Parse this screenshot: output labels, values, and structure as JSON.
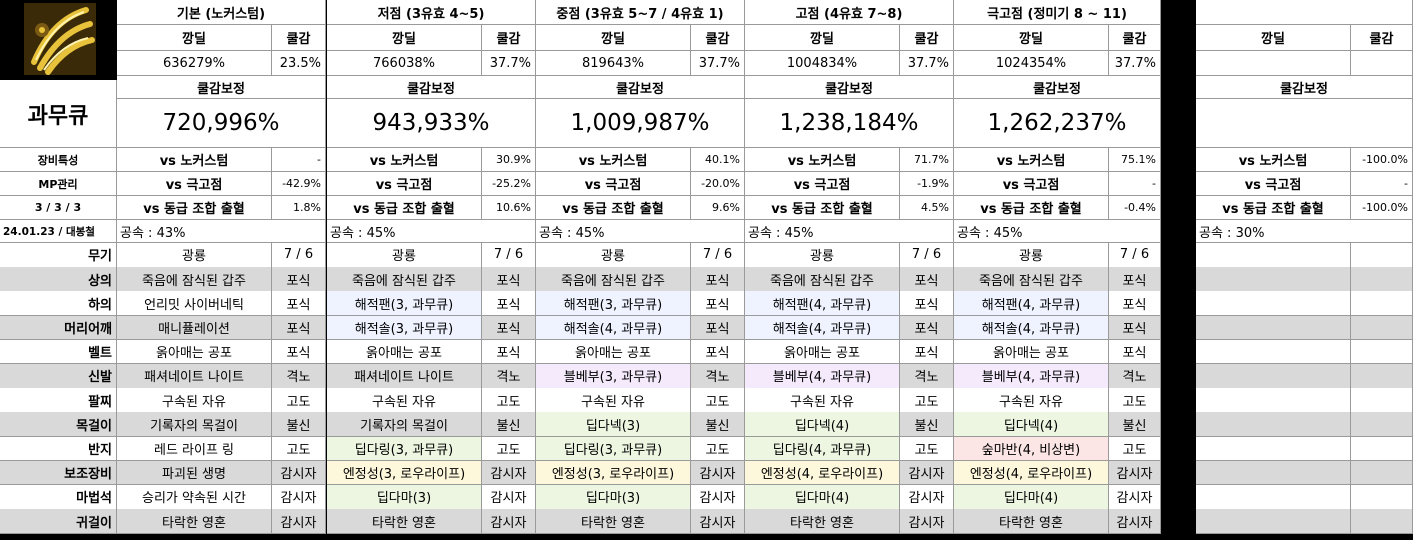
{
  "character": "과무큐",
  "icon": "claw-weapon-icon",
  "date_label": "24.01.23 / 대봉철",
  "labels": {
    "dmg": "깡딜",
    "cd": "쿨감",
    "corrected": "쿨감보정"
  },
  "side_labels": [
    "장비특성",
    "MP관리",
    "3 / 3 / 3"
  ],
  "compare_labels": [
    "vs 노커스텀",
    "vs 극고점",
    "vs 동급 조합 출혈"
  ],
  "slots": [
    "무기",
    "상의",
    "하의",
    "머리어깨",
    "벨트",
    "신발",
    "팔찌",
    "목걸이",
    "반지",
    "보조장비",
    "마법석",
    "귀걸이"
  ],
  "columns": [
    {
      "header": "기본 (노커스텀)",
      "dmg": "636279%",
      "cd": "23.5%",
      "corrected": "720,996%",
      "compare": [
        "-",
        "-42.9%",
        "1.8%"
      ],
      "speed": "공속 : 43%",
      "items": [
        [
          "광룡",
          "7 / 6"
        ],
        [
          "죽음에 잠식된 갑주",
          "포식"
        ],
        [
          "언리밋 사이버네틱",
          "포식"
        ],
        [
          "매니퓰레이션",
          "포식"
        ],
        [
          "옭아매는 공포",
          "포식"
        ],
        [
          "패셔네이트 나이트",
          "격노"
        ],
        [
          "구속된 자유",
          "고도"
        ],
        [
          "기록자의 목걸이",
          "불신"
        ],
        [
          "레드 라이프 링",
          "고도"
        ],
        [
          "파괴된 생명",
          "감시자"
        ],
        [
          "승리가 약속된 시간",
          "감시자"
        ],
        [
          "타락한 영혼",
          "감시자"
        ]
      ]
    },
    {
      "header": "저점 (3유효 4~5)",
      "dmg": "766038%",
      "cd": "37.7%",
      "corrected": "943,933%",
      "compare": [
        "30.9%",
        "-25.2%",
        "10.6%"
      ],
      "speed": "공속 : 45%",
      "items": [
        [
          "광룡",
          "7 / 6"
        ],
        [
          "죽음에 잠식된 갑주",
          "포식"
        ],
        [
          "해적팬(3, 과무큐)",
          "포식"
        ],
        [
          "해적솔(3, 과무큐)",
          "포식"
        ],
        [
          "옭아매는 공포",
          "포식"
        ],
        [
          "패셔네이트 나이트",
          "격노"
        ],
        [
          "구속된 자유",
          "고도"
        ],
        [
          "기록자의 목걸이",
          "불신"
        ],
        [
          "딥다링(3, 과무큐)",
          "고도"
        ],
        [
          "엔정성(3, 로우라이프)",
          "감시자"
        ],
        [
          "딥다마(3)",
          "감시자"
        ],
        [
          "타락한 영혼",
          "감시자"
        ]
      ]
    },
    {
      "header": "중점 (3유효 5~7 / 4유효 1)",
      "dmg": "819643%",
      "cd": "37.7%",
      "corrected": "1,009,987%",
      "compare": [
        "40.1%",
        "-20.0%",
        "9.6%"
      ],
      "speed": "공속 : 45%",
      "items": [
        [
          "광룡",
          "7 / 6"
        ],
        [
          "죽음에 잠식된 갑주",
          "포식"
        ],
        [
          "해적팬(3, 과무큐)",
          "포식"
        ],
        [
          "해적솔(4, 과무큐)",
          "포식"
        ],
        [
          "옭아매는 공포",
          "포식"
        ],
        [
          "블베부(3, 과무큐)",
          "격노"
        ],
        [
          "구속된 자유",
          "고도"
        ],
        [
          "딥다넥(3)",
          "불신"
        ],
        [
          "딥다링(3, 과무큐)",
          "고도"
        ],
        [
          "엔정성(3, 로우라이프)",
          "감시자"
        ],
        [
          "딥다마(3)",
          "감시자"
        ],
        [
          "타락한 영혼",
          "감시자"
        ]
      ]
    },
    {
      "header": "고점 (4유효 7~8)",
      "dmg": "1004834%",
      "cd": "37.7%",
      "corrected": "1,238,184%",
      "compare": [
        "71.7%",
        "-1.9%",
        "4.5%"
      ],
      "speed": "공속 : 45%",
      "items": [
        [
          "광룡",
          "7 / 6"
        ],
        [
          "죽음에 잠식된 갑주",
          "포식"
        ],
        [
          "해적팬(4, 과무큐)",
          "포식"
        ],
        [
          "해적솔(4, 과무큐)",
          "포식"
        ],
        [
          "옭아매는 공포",
          "포식"
        ],
        [
          "블베부(4, 과무큐)",
          "격노"
        ],
        [
          "구속된 자유",
          "고도"
        ],
        [
          "딥다넥(4)",
          "불신"
        ],
        [
          "딥다링(4, 과무큐)",
          "고도"
        ],
        [
          "엔정성(4, 로우라이프)",
          "감시자"
        ],
        [
          "딥다마(4)",
          "감시자"
        ],
        [
          "타락한 영혼",
          "감시자"
        ]
      ]
    },
    {
      "header": "극고점 (정미기 8 ~ 11)",
      "dmg": "1024354%",
      "cd": "37.7%",
      "corrected": "1,262,237%",
      "compare": [
        "75.1%",
        "-",
        "-0.4%"
      ],
      "speed": "공속 : 45%",
      "items": [
        [
          "광룡",
          "7 / 6"
        ],
        [
          "죽음에 잠식된 갑주",
          "포식"
        ],
        [
          "해적팬(4, 과무큐)",
          "포식"
        ],
        [
          "해적솔(4, 과무큐)",
          "포식"
        ],
        [
          "옭아매는 공포",
          "포식"
        ],
        [
          "블베부(4, 과무큐)",
          "격노"
        ],
        [
          "구속된 자유",
          "고도"
        ],
        [
          "딥다넥(4)",
          "불신"
        ],
        [
          "숲마반(4, 비상변)",
          "고도"
        ],
        [
          "엔정성(4, 로우라이프)",
          "감시자"
        ],
        [
          "딥다마(4)",
          "감시자"
        ],
        [
          "타락한 영혼",
          "감시자"
        ]
      ]
    },
    {
      "header": "",
      "dmg": "",
      "cd": "",
      "corrected": "",
      "compare": [
        "-100.0%",
        "-",
        "-100.0%"
      ],
      "speed": "공속 : 30%",
      "items": [
        [
          "",
          ""
        ],
        [
          "",
          ""
        ],
        [
          "",
          ""
        ],
        [
          "",
          ""
        ],
        [
          "",
          ""
        ],
        [
          "",
          ""
        ],
        [
          "",
          ""
        ],
        [
          "",
          ""
        ],
        [
          "",
          ""
        ],
        [
          "",
          ""
        ],
        [
          "",
          ""
        ],
        [
          "",
          ""
        ]
      ]
    }
  ]
}
